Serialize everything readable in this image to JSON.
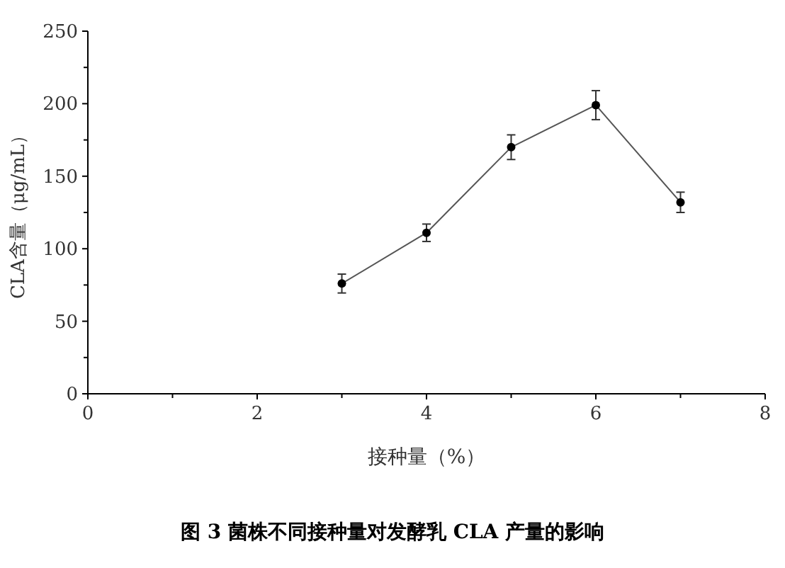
{
  "chart_data": {
    "type": "line",
    "xlabel": "接种量（%）",
    "ylabel": "CLA含量（μg/mL）",
    "x": [
      3,
      4,
      5,
      6,
      7
    ],
    "series": [
      {
        "color": "#000000",
        "values": [
          76,
          111,
          170,
          199,
          132
        ],
        "errors": [
          6.5,
          6,
          8.5,
          10,
          7
        ]
      }
    ],
    "xlim": [
      0,
      8
    ],
    "xticks": [
      0,
      2,
      4,
      6,
      8
    ],
    "ylim": [
      0,
      250
    ],
    "yticks": [
      0,
      50,
      100,
      150,
      200,
      250
    ],
    "marker": "circle",
    "line_style": "solid",
    "grid": false,
    "annotations": [
      "图 3 菌株不同接种量对发酵乳 CLA 产量的影响"
    ]
  }
}
